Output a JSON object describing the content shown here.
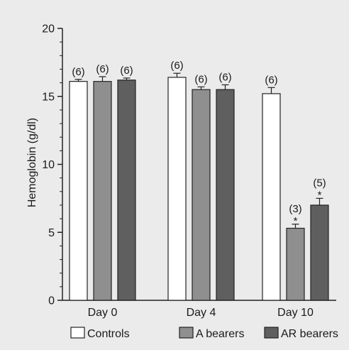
{
  "chart_data": {
    "type": "bar",
    "title": "",
    "xlabel": "",
    "ylabel": "Hemoglobin (g/dl)",
    "ylim": [
      0,
      20
    ],
    "yticks": [
      0,
      5,
      10,
      15,
      20
    ],
    "categories": [
      "Day 0",
      "Day 4",
      "Day 10"
    ],
    "series": [
      {
        "name": "Controls",
        "color": "#ffffff",
        "values": [
          16.1,
          16.4,
          15.2
        ],
        "errors": [
          0.15,
          0.3,
          0.45
        ],
        "n_labels": [
          "(6)",
          "(6)",
          "(6)"
        ],
        "significance": [
          "",
          "",
          ""
        ]
      },
      {
        "name": "A bearers",
        "color": "#8f8f8f",
        "values": [
          16.1,
          15.5,
          5.3
        ],
        "errors": [
          0.35,
          0.2,
          0.3
        ],
        "n_labels": [
          "(6)",
          "(6)",
          "(3)"
        ],
        "significance": [
          "",
          "",
          "*"
        ]
      },
      {
        "name": "AR bearers",
        "color": "#5f5f5f",
        "values": [
          16.2,
          15.5,
          7.0
        ],
        "errors": [
          0.15,
          0.35,
          0.5
        ],
        "n_labels": [
          "(6)",
          "(6)",
          "(5)"
        ],
        "significance": [
          "",
          "",
          "*"
        ]
      }
    ],
    "legend_position": "bottom",
    "grid": false
  }
}
